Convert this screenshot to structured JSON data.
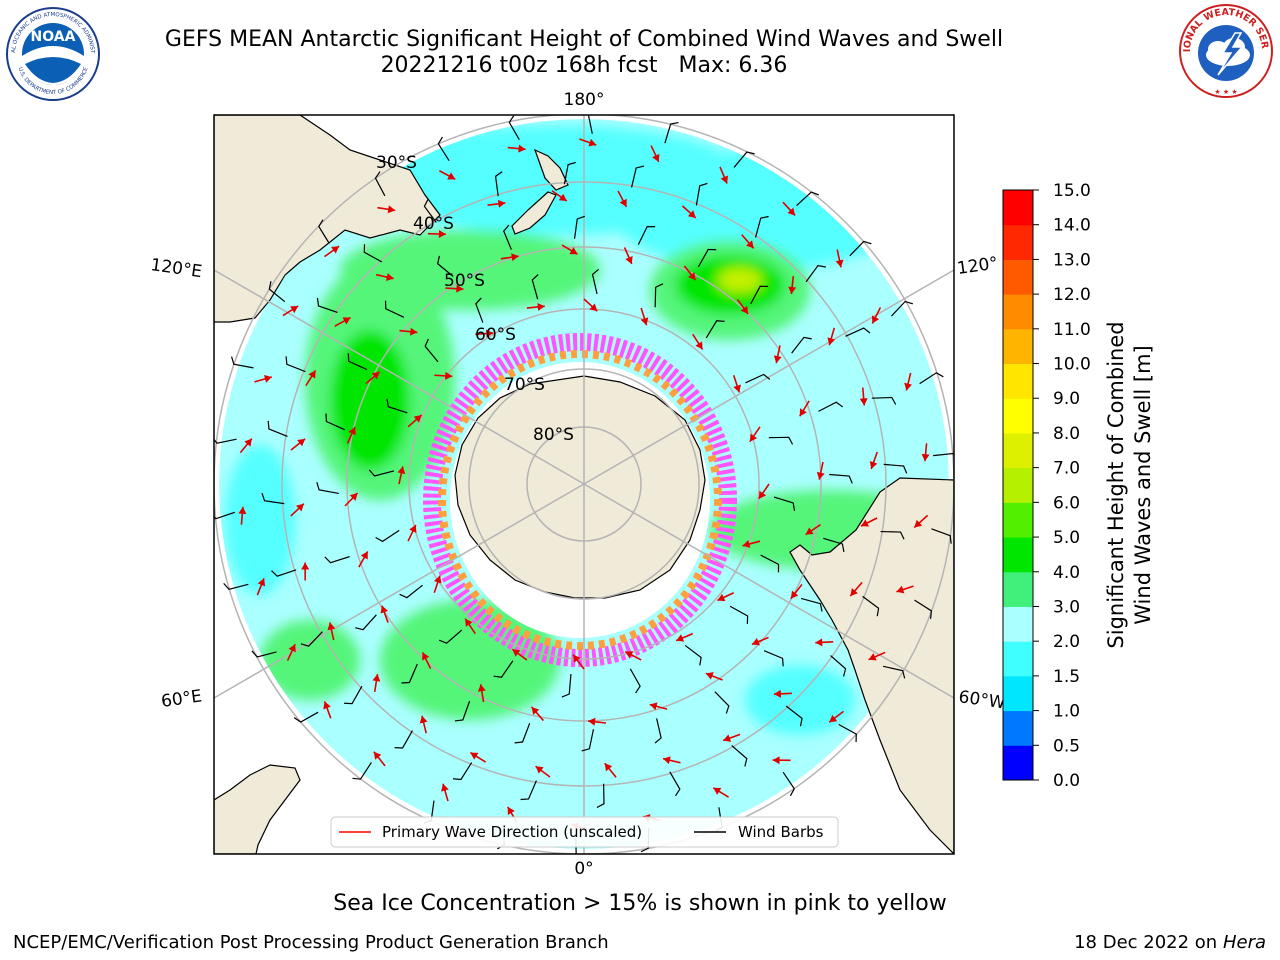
{
  "header": {
    "title": "GEFS MEAN Antarctic Significant Height of Combined Wind Waves and Swell",
    "subtitle_run": "20221216 t00z 168h fcst",
    "subtitle_max": "Max: 6.36",
    "left_logo_text": "NOAA",
    "left_logo_ring_top": "NATIONAL OCEANIC AND ATMOSPHERIC ADMINISTRATION",
    "left_logo_ring_bottom": "U.S. DEPARTMENT OF COMMERCE",
    "right_logo_ring": "NATIONAL WEATHER SERVICE"
  },
  "map": {
    "projection": "south polar stereographic",
    "lon_labels": [
      "180°",
      "120°E",
      "120°",
      "60°E",
      "60°W",
      "0°"
    ],
    "lat_labels": [
      "30°S",
      "40°S",
      "50°S",
      "60°S",
      "70°S",
      "80°S"
    ],
    "colors": {
      "land": "#efebd8",
      "ocean_low": "#aaffff",
      "ocean_mid": "#55ffff",
      "ocean_green_light": "#55f57a",
      "ocean_green": "#00e600",
      "ocean_yellow": "#c8f000",
      "sea_ice_pink": "#ff55ff",
      "sea_ice_orange": "#ffa040",
      "wave_arrow": "#ff0000",
      "wind_barb": "#000000",
      "grid": "#b4b4b4"
    }
  },
  "legend": {
    "primary_wave_label": "Primary Wave Direction (unscaled)",
    "wind_barbs_label": "Wind Barbs"
  },
  "colorbar": {
    "label_line1": "Significant Height of Combined",
    "label_line2": "Wind Waves and Swell [m]",
    "ticks": [
      "0.0",
      "0.5",
      "1.0",
      "1.5",
      "2.0",
      "3.0",
      "4.0",
      "5.0",
      "6.0",
      "7.0",
      "8.0",
      "9.0",
      "10.0",
      "11.0",
      "12.0",
      "13.0",
      "14.0",
      "15.0"
    ],
    "colors": [
      "#0000ff",
      "#0078ff",
      "#00e6ff",
      "#40ffff",
      "#aaffff",
      "#40f07a",
      "#00e600",
      "#50f000",
      "#b4f000",
      "#dcf000",
      "#ffff00",
      "#ffe600",
      "#ffb400",
      "#ff8c00",
      "#ff5a00",
      "#ff2800",
      "#ff0000"
    ]
  },
  "note": "Sea Ice Concentration > 15% is shown in pink to yellow",
  "footer": {
    "left": "NCEP/EMC/Verification Post Processing Product Generation Branch",
    "right_date": "18 Dec 2022 on",
    "right_machine": "Hera"
  }
}
